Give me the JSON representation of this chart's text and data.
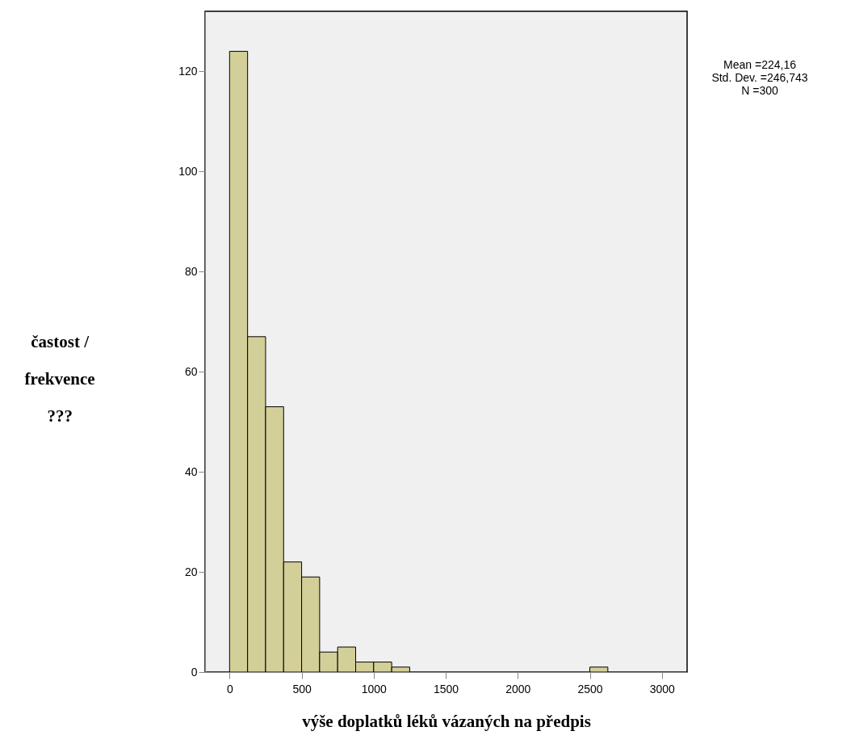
{
  "chart_data": {
    "type": "histogram",
    "xlabel": "výše doplatků léků vázaných na předpis",
    "ylabel": "častost /\nfrekvence\n???",
    "bins": [
      0,
      125,
      250,
      375,
      500,
      625,
      750,
      875,
      1000,
      1125,
      1250,
      1375,
      1500,
      1625,
      1750,
      1875,
      2000,
      2125,
      2250,
      2375,
      2500,
      2625
    ],
    "values": [
      124,
      67,
      53,
      22,
      19,
      4,
      5,
      2,
      2,
      1,
      0,
      0,
      0,
      0,
      0,
      0,
      0,
      0,
      0,
      0,
      1
    ],
    "color": "#d3cf98",
    "xlim": [
      -170,
      3175
    ],
    "xticks": [
      0,
      500,
      1000,
      1500,
      2000,
      2500,
      3000
    ],
    "ylim": [
      0,
      132
    ],
    "yticks": [
      0,
      20,
      40,
      60,
      80,
      100,
      120
    ],
    "grid": false,
    "annotations": [
      "Mean =224,16",
      "Std. Dev. =246,743",
      "N =300"
    ]
  }
}
